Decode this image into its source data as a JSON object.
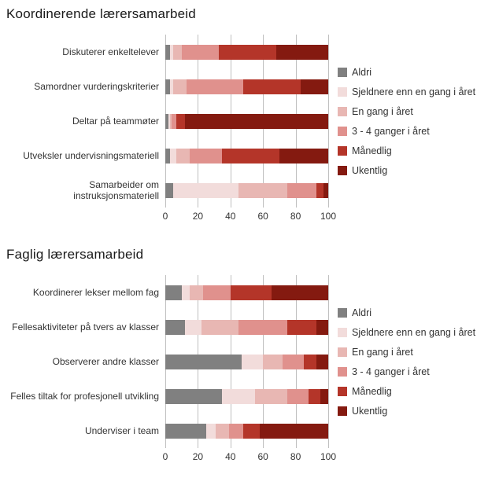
{
  "chart_data": [
    {
      "type": "bar",
      "orientation": "horizontal",
      "stacked": true,
      "title": "Koordinerende lærersamarbeid",
      "categories": [
        "Diskuterer enkeltelever",
        "Samordner vurderingskriterier",
        "Deltar på teammøter",
        "Utveksler undervisningsmateriell",
        "Samarbeider om instruksjonsmateriell"
      ],
      "series": [
        {
          "name": "Aldri",
          "color": "#808080",
          "values": [
            3,
            3,
            2,
            3,
            5
          ]
        },
        {
          "name": "Sjeldnere enn en gang i året",
          "color": "#f2dcdb",
          "values": [
            2,
            2,
            1,
            4,
            40
          ]
        },
        {
          "name": "En gang i året",
          "color": "#e8b7b3",
          "values": [
            5,
            8,
            1,
            8,
            30
          ]
        },
        {
          "name": "3 - 4 ganger i året",
          "color": "#e0918d",
          "values": [
            23,
            35,
            3,
            20,
            18
          ]
        },
        {
          "name": "Månedlig",
          "color": "#b43529",
          "values": [
            35,
            35,
            5,
            35,
            4
          ]
        },
        {
          "name": "Ukentlig",
          "color": "#841a10",
          "values": [
            32,
            17,
            88,
            30,
            3
          ]
        }
      ],
      "xlim": [
        0,
        100
      ],
      "xticks": [
        0,
        20,
        40,
        60,
        80,
        100
      ],
      "legend_position": "right",
      "gridlines": "vertical"
    },
    {
      "type": "bar",
      "orientation": "horizontal",
      "stacked": true,
      "title": "Faglig lærersamarbeid",
      "categories": [
        "Koordinerer lekser mellom fag",
        "Fellesaktiviteter på tvers av klasser",
        "Observerer andre klasser",
        "Felles tiltak for profesjonell utvikling",
        "Underviser i team"
      ],
      "series": [
        {
          "name": "Aldri",
          "color": "#808080",
          "values": [
            10,
            12,
            47,
            35,
            25
          ]
        },
        {
          "name": "Sjeldnere enn en gang i året",
          "color": "#f2dcdb",
          "values": [
            5,
            10,
            13,
            20,
            6
          ]
        },
        {
          "name": "En gang i året",
          "color": "#e8b7b3",
          "values": [
            8,
            23,
            12,
            20,
            8
          ]
        },
        {
          "name": "3 - 4 ganger i året",
          "color": "#e0918d",
          "values": [
            17,
            30,
            13,
            13,
            9
          ]
        },
        {
          "name": "Månedlig",
          "color": "#b43529",
          "values": [
            25,
            18,
            8,
            7,
            10
          ]
        },
        {
          "name": "Ukentlig",
          "color": "#841a10",
          "values": [
            35,
            7,
            7,
            5,
            42
          ]
        }
      ],
      "xlim": [
        0,
        100
      ],
      "xticks": [
        0,
        20,
        40,
        60,
        80,
        100
      ],
      "legend_position": "right",
      "gridlines": "vertical"
    }
  ]
}
